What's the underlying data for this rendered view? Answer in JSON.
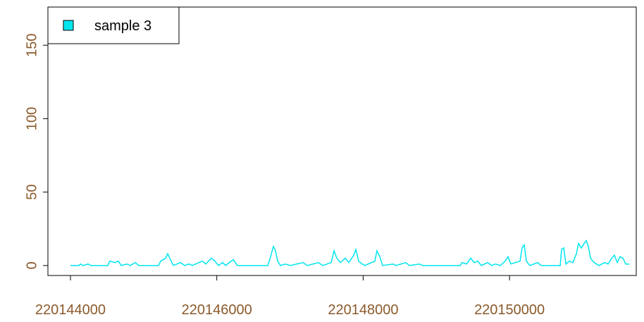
{
  "chart_data": {
    "type": "line",
    "x": [
      220144000,
      220144116,
      220144135,
      220144173,
      220144241,
      220144279,
      220144510,
      220144539,
      220144607,
      220144655,
      220144693,
      220144770,
      220144818,
      220144886,
      220144934,
      220145204,
      220145233,
      220145300,
      220145329,
      220145367,
      220145406,
      220145502,
      220145560,
      220145618,
      220145666,
      220145801,
      220145849,
      220145926,
      220145974,
      220146022,
      220146080,
      220146119,
      220146225,
      220146282,
      220146696,
      220146735,
      220146773,
      220146802,
      220146831,
      220146870,
      220146937,
      220147005,
      220147178,
      220147236,
      220147390,
      220147448,
      220147563,
      220147602,
      220147640,
      220147688,
      220147756,
      220147804,
      220147871,
      220147900,
      220147938,
      220147987,
      220148025,
      220148160,
      220148188,
      220148227,
      220148266,
      220148410,
      220148449,
      220148584,
      220148632,
      220148767,
      220148815,
      220149325,
      220149354,
      220149412,
      220149470,
      220149518,
      220149566,
      220149614,
      220149701,
      220149758,
      220149807,
      220149874,
      220149942,
      220149980,
      220150018,
      220150144,
      220150172,
      220150201,
      220150230,
      220150278,
      220150384,
      220150432,
      220150693,
      220150712,
      220150741,
      220150770,
      220150818,
      220150866,
      220150914,
      220150943,
      220150982,
      220151020,
      220151049,
      220151078,
      220151107,
      220151155,
      220151222,
      220151299,
      220151348,
      220151396,
      220151434,
      220151473,
      220151511,
      220151550,
      220151588,
      220151636
    ],
    "series": [
      {
        "name": "sample 3",
        "color": "#00E5EE",
        "values": [
          0,
          0,
          1,
          0,
          1,
          0,
          0,
          3,
          2,
          3,
          0,
          1,
          0,
          2,
          0,
          0,
          3,
          5,
          8,
          4,
          0,
          2,
          0,
          1,
          0,
          3,
          1,
          5,
          3,
          0,
          2,
          0,
          4,
          0,
          0,
          6,
          13,
          10,
          3,
          0,
          1,
          0,
          2,
          0,
          2,
          0,
          2,
          10,
          5,
          2,
          5,
          2,
          7,
          11,
          3,
          1,
          0,
          3,
          10,
          6,
          0,
          1,
          0,
          2,
          0,
          1,
          0,
          0,
          2,
          1,
          5,
          2,
          3,
          0,
          2,
          0,
          1,
          0,
          3,
          6,
          1,
          3,
          12,
          14,
          3,
          0,
          2,
          0,
          0,
          11,
          12,
          1,
          3,
          2,
          8,
          15,
          12,
          15,
          17,
          13,
          5,
          2,
          0,
          2,
          1,
          5,
          7,
          2,
          6,
          5,
          1,
          1
        ]
      }
    ],
    "xlim": [
      220143692,
      220151732
    ],
    "ylim": [
      -6.8,
      176
    ],
    "xticks": [
      220144000,
      220146000,
      220148000,
      220150000
    ],
    "yticks": [
      0,
      50,
      100,
      150
    ],
    "legend": "top-left"
  }
}
